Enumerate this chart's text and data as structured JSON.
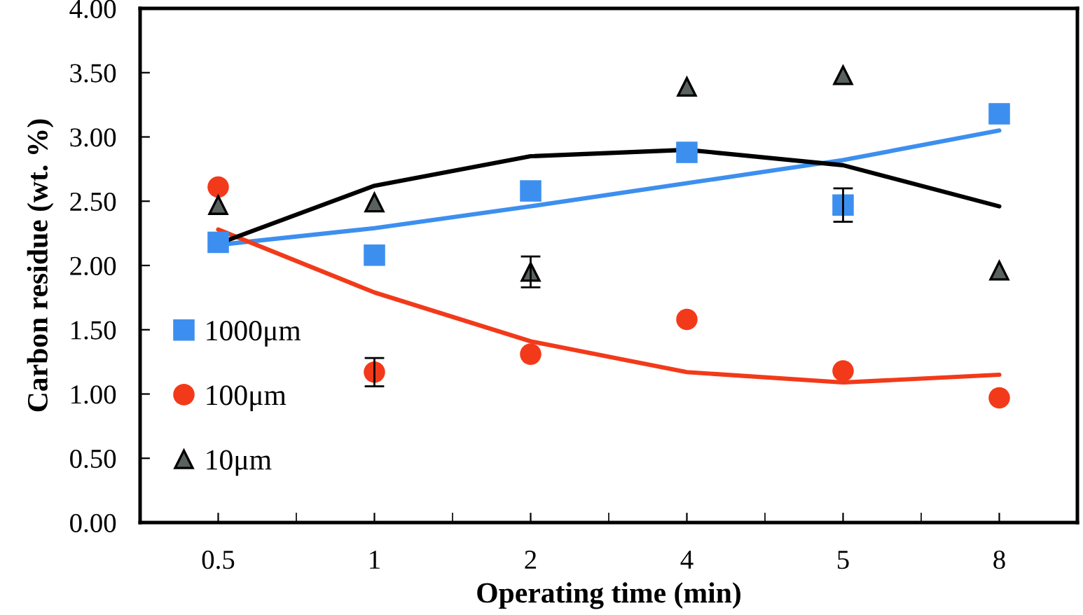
{
  "chart_data": {
    "type": "scatter",
    "xlabel": "Operating time (min)",
    "ylabel": "Carbon residue (wt. %)",
    "categories": [
      "0.5",
      "1",
      "2",
      "4",
      "5",
      "8"
    ],
    "ylim": [
      0,
      4
    ],
    "yticks": [
      {
        "value": 0,
        "label": "0.00"
      },
      {
        "value": 0.5,
        "label": "0.50"
      },
      {
        "value": 1,
        "label": "1.00"
      },
      {
        "value": 1.5,
        "label": "1.50"
      },
      {
        "value": 2,
        "label": "2.00"
      },
      {
        "value": 2.5,
        "label": "2.50"
      },
      {
        "value": 3,
        "label": "3.00"
      },
      {
        "value": 3.5,
        "label": "3.50"
      },
      {
        "value": 4,
        "label": "4.00"
      }
    ],
    "grid": false,
    "legend": "left",
    "series": [
      {
        "type": "line",
        "color": "#3d8fef",
        "marker": "none",
        "line_style": "solid",
        "values": [
          2.16,
          2.29,
          2.46,
          2.64,
          2.82,
          3.05
        ]
      },
      {
        "type": "line",
        "color": "#f23a1a",
        "marker": "none",
        "line_style": "solid",
        "values": [
          2.28,
          1.79,
          1.41,
          1.17,
          1.09,
          1.15
        ]
      },
      {
        "type": "line",
        "color": "#000000",
        "marker": "none",
        "line_style": "solid",
        "values": [
          2.17,
          2.62,
          2.85,
          2.9,
          2.78,
          2.46
        ]
      },
      {
        "name": "1000μm",
        "color": "#3d8fef",
        "marker": "square",
        "values": [
          2.18,
          2.08,
          2.58,
          2.88,
          2.47,
          3.18
        ],
        "errors": [
          null,
          null,
          null,
          null,
          0.13,
          null
        ]
      },
      {
        "name": "100μm",
        "color": "#f23a1a",
        "marker": "circle",
        "values": [
          2.61,
          1.17,
          1.31,
          1.58,
          1.18,
          0.97
        ],
        "errors": [
          null,
          0.11,
          null,
          null,
          null,
          null
        ]
      },
      {
        "name": "10μm",
        "color": "#5a6260",
        "marker": "triangle",
        "values": [
          2.47,
          2.49,
          1.95,
          3.39,
          3.48,
          1.96
        ],
        "errors": [
          null,
          null,
          0.12,
          null,
          null,
          null
        ]
      }
    ]
  }
}
